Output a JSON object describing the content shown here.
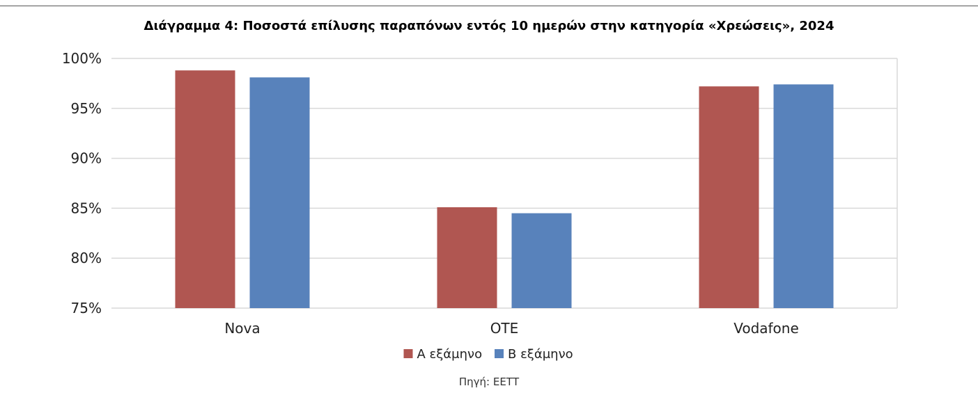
{
  "chart_data": {
    "type": "bar",
    "title": "Διάγραμμα 4:  Ποσοστά επίλυσης παραπόνων εντός 10 ημερών στην κατηγορία «Χρεώσεις», 2024",
    "categories": [
      "Nova",
      "OTE",
      "Vodafone"
    ],
    "series": [
      {
        "name": "Α εξάμηνο",
        "color": "#b05651",
        "values": [
          98.8,
          85.1,
          97.2
        ]
      },
      {
        "name": "Β εξάμηνο",
        "color": "#5882bb",
        "values": [
          98.1,
          84.5,
          97.4
        ]
      }
    ],
    "ylim": [
      75,
      100
    ],
    "yticks": [
      75,
      80,
      85,
      90,
      95,
      100
    ],
    "ytick_labels": [
      "75%",
      "80%",
      "85%",
      "90%",
      "95%",
      "100%"
    ],
    "xlabel": "",
    "ylabel": "",
    "grid": true,
    "legend_position": "bottom",
    "gridline_color": "#d9d9d9"
  },
  "source": "Πηγή: ΕΕΤΤ"
}
